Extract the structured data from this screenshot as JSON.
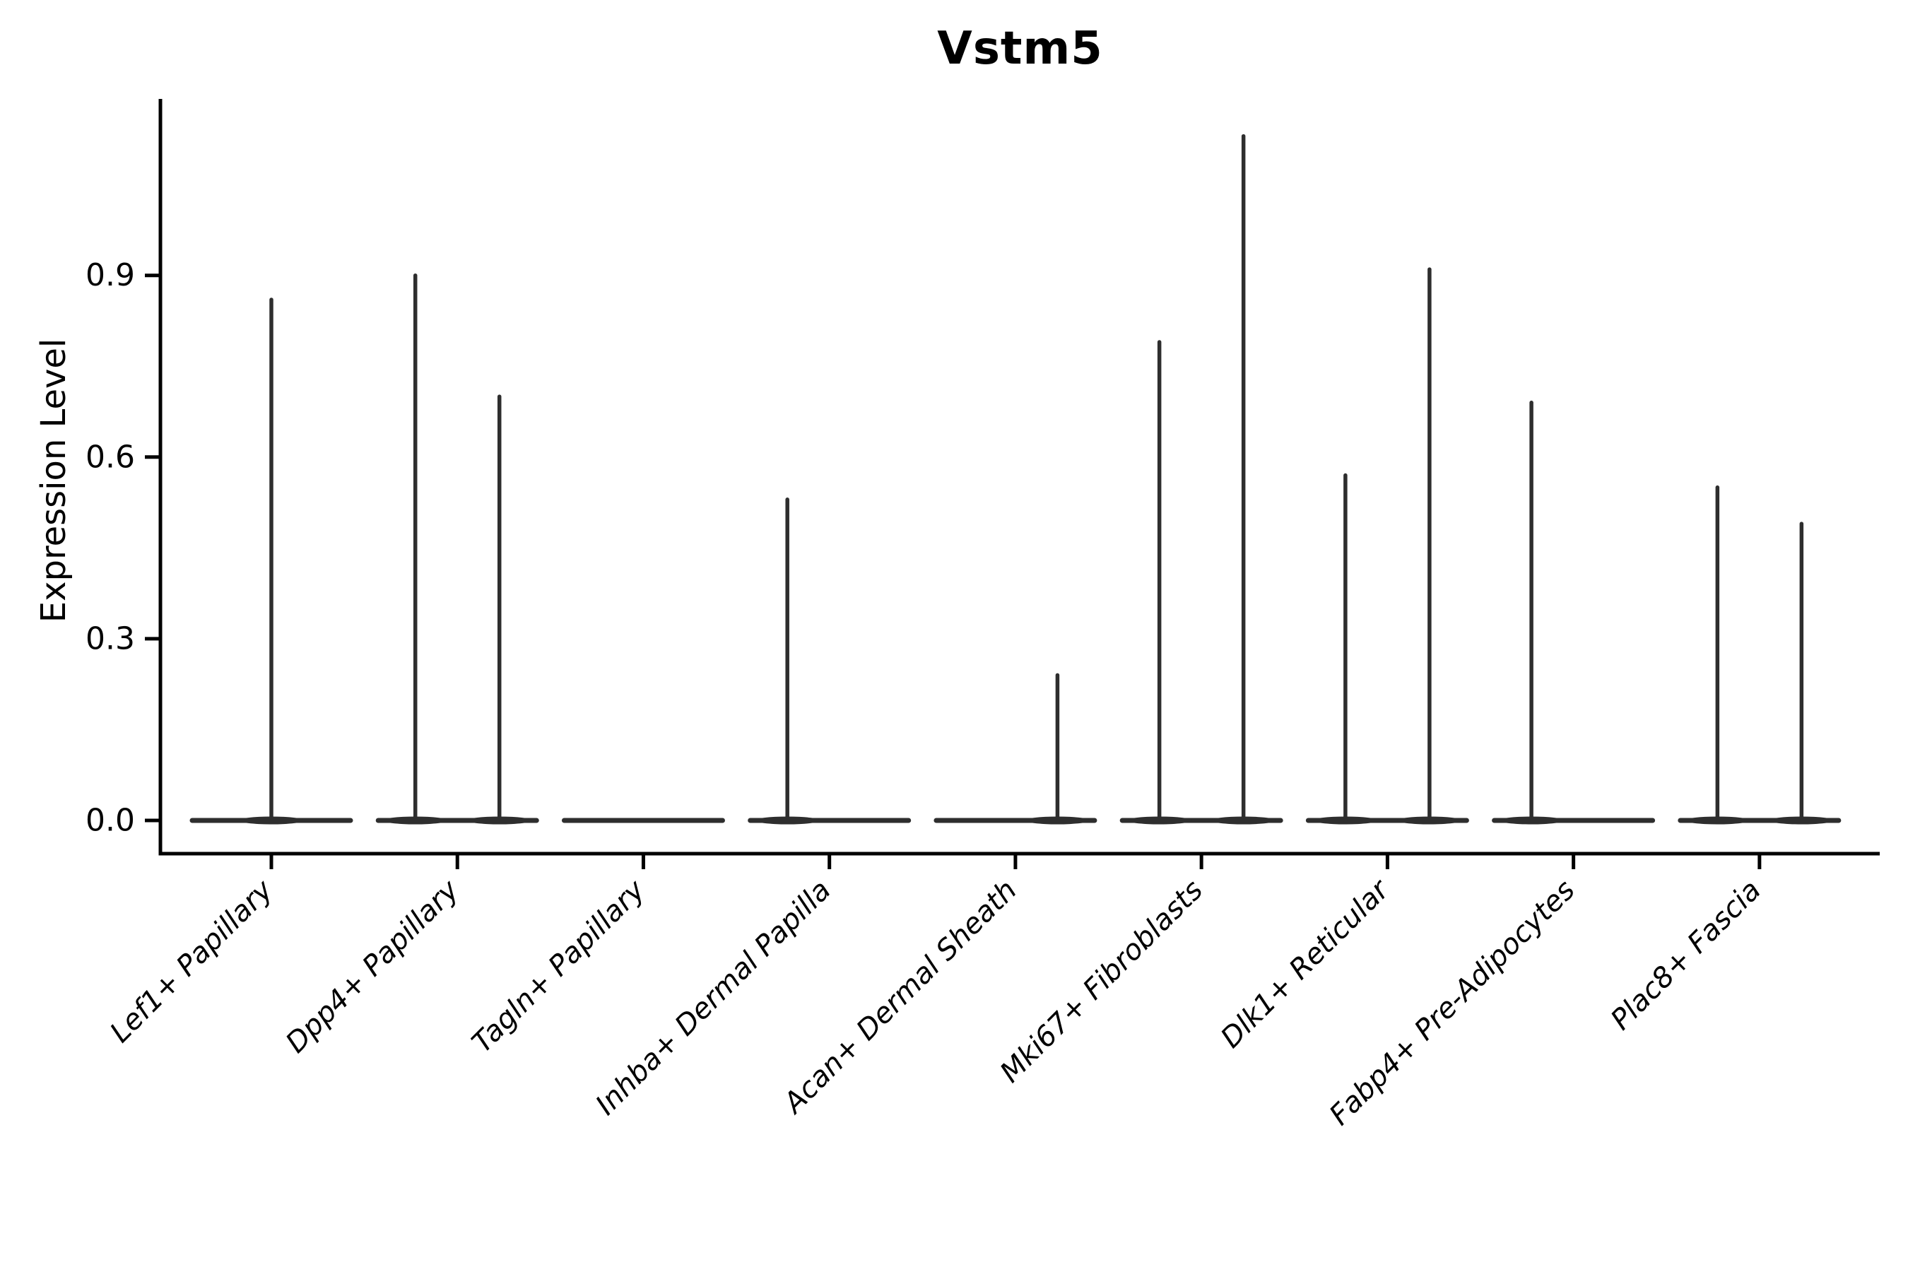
{
  "chart_data": {
    "type": "violin",
    "title": "Vstm5",
    "ylabel": "Expression Level",
    "xlabel": "",
    "yticks": [
      "0.0",
      "0.3",
      "0.6",
      "0.9"
    ],
    "ytick_values": [
      0.0,
      0.3,
      0.6,
      0.9
    ],
    "ylim": [
      0.0,
      1.19
    ],
    "grid": false,
    "legend": null,
    "x_label_rotation_deg": 45,
    "x_label_style": "italic",
    "categories": [
      "Lef1+ Papillary",
      "Dpp4+ Papillary",
      "Tagln+ Papillary",
      "Inhba+ Dermal Papilla",
      "Acan+ Dermal Sheath",
      "Mki67+ Fibroblasts",
      "Dlk1+ Reticular",
      "Fabp4+ Pre-Adipocytes",
      "Plac8+ Fascia"
    ],
    "description": "Each category shows a flat violin body at expression 0 with thin vertical spikes marking the tail of expressing cells; spike value is the maximum expression level reached.",
    "violins": [
      {
        "category": "Lef1+ Papillary",
        "spikes": [
          {
            "position": "center",
            "max": 0.86
          }
        ]
      },
      {
        "category": "Dpp4+ Papillary",
        "spikes": [
          {
            "position": "left",
            "max": 0.9
          },
          {
            "position": "right",
            "max": 0.7
          }
        ]
      },
      {
        "category": "Tagln+ Papillary",
        "spikes": []
      },
      {
        "category": "Inhba+ Dermal Papilla",
        "spikes": [
          {
            "position": "left",
            "max": 0.53
          }
        ]
      },
      {
        "category": "Acan+ Dermal Sheath",
        "spikes": [
          {
            "position": "right",
            "max": 0.24
          }
        ]
      },
      {
        "category": "Mki67+ Fibroblasts",
        "spikes": [
          {
            "position": "left",
            "max": 0.79
          },
          {
            "position": "right",
            "max": 1.13
          }
        ]
      },
      {
        "category": "Dlk1+ Reticular",
        "spikes": [
          {
            "position": "left",
            "max": 0.57
          },
          {
            "position": "right",
            "max": 0.91
          }
        ]
      },
      {
        "category": "Fabp4+ Pre-Adipocytes",
        "spikes": [
          {
            "position": "left",
            "max": 0.69
          }
        ]
      },
      {
        "category": "Plac8+ Fascia",
        "spikes": [
          {
            "position": "left",
            "max": 0.55
          },
          {
            "position": "right",
            "max": 0.49
          }
        ]
      }
    ],
    "colors": {
      "ink": "#2e2e2e",
      "axis": "#000000",
      "background": "#ffffff"
    }
  }
}
